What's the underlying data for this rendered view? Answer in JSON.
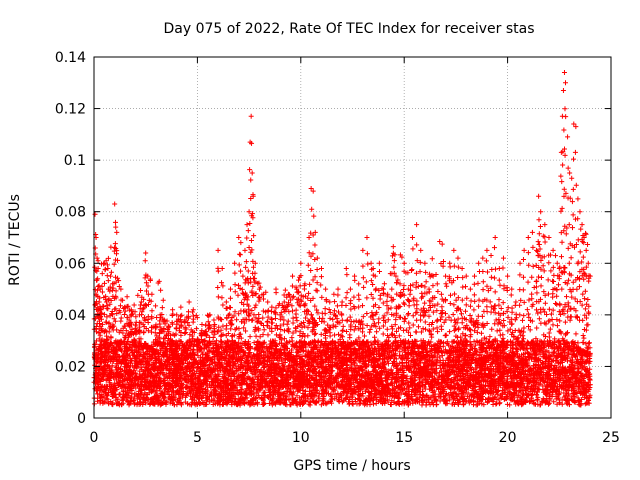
{
  "chart_data": {
    "type": "scatter",
    "title": "Day 075 of 2022, Rate Of TEC Index for receiver stas",
    "xlabel": "GPS time / hours",
    "ylabel": "ROTI / TECUs",
    "xlim": [
      0,
      25
    ],
    "ylim": [
      0,
      0.14
    ],
    "xticks": [
      0,
      5,
      10,
      15,
      20,
      25
    ],
    "xtick_labels": [
      "0",
      "5",
      "10",
      "15",
      "20",
      "25"
    ],
    "yticks": [
      0,
      0.02,
      0.04,
      0.06,
      0.08,
      0.1,
      0.12,
      0.14
    ],
    "ytick_labels": [
      "0",
      "0.02",
      "0.04",
      "0.06",
      "0.08",
      "0.1",
      "0.12",
      "0.14"
    ],
    "grid": true,
    "marker": "+",
    "color": "#ff0000",
    "series": [
      {
        "name": "ROTI",
        "x": [
          0.05,
          0.1,
          0.15,
          0.2,
          0.25,
          0.3,
          0.35,
          0.4,
          0.5,
          0.6,
          0.7,
          0.8,
          0.9,
          1.0,
          1.05,
          1.1,
          1.3,
          1.5,
          1.6,
          1.7,
          1.8,
          2.0,
          2.2,
          2.4,
          2.5,
          2.6,
          2.8,
          3.0,
          3.2,
          3.4,
          3.6,
          3.8,
          4.0,
          4.2,
          4.4,
          4.6,
          4.8,
          5.0,
          5.2,
          5.4,
          5.6,
          5.8,
          6.0,
          6.2,
          6.4,
          6.6,
          6.8,
          7.0,
          7.1,
          7.2,
          7.3,
          7.4,
          7.5,
          7.55,
          7.6,
          7.65,
          7.7,
          7.8,
          8.0,
          8.2,
          8.4,
          8.6,
          8.8,
          9.0,
          9.2,
          9.4,
          9.6,
          9.8,
          10.0,
          10.2,
          10.4,
          10.5,
          10.6,
          10.7,
          10.8,
          11.0,
          11.2,
          11.4,
          11.6,
          11.8,
          12.0,
          12.2,
          12.4,
          12.6,
          12.8,
          13.0,
          13.2,
          13.4,
          13.5,
          13.6,
          13.8,
          14.0,
          14.2,
          14.4,
          14.6,
          14.8,
          15.0,
          15.2,
          15.4,
          15.6,
          15.8,
          16.0,
          16.2,
          16.4,
          16.6,
          16.8,
          17.0,
          17.2,
          17.4,
          17.6,
          17.8,
          18.0,
          18.2,
          18.4,
          18.6,
          18.8,
          19.0,
          19.2,
          19.4,
          19.6,
          19.8,
          20.0,
          20.2,
          20.4,
          20.6,
          20.8,
          21.0,
          21.2,
          21.4,
          21.5,
          21.6,
          21.8,
          22.0,
          22.2,
          22.4,
          22.5,
          22.6,
          22.65,
          22.7,
          22.75,
          22.8,
          22.9,
          23.0,
          23.1,
          23.2,
          23.3,
          23.4,
          23.5,
          23.6,
          23.7,
          23.8,
          23.9
        ],
        "y": [
          0.079,
          0.07,
          0.062,
          0.058,
          0.045,
          0.05,
          0.042,
          0.056,
          0.06,
          0.045,
          0.05,
          0.055,
          0.052,
          0.083,
          0.074,
          0.072,
          0.05,
          0.043,
          0.047,
          0.038,
          0.042,
          0.036,
          0.04,
          0.046,
          0.064,
          0.055,
          0.048,
          0.035,
          0.04,
          0.038,
          0.035,
          0.042,
          0.04,
          0.043,
          0.038,
          0.045,
          0.042,
          0.03,
          0.033,
          0.036,
          0.04,
          0.038,
          0.065,
          0.058,
          0.045,
          0.05,
          0.06,
          0.07,
          0.068,
          0.055,
          0.065,
          0.075,
          0.08,
          0.107,
          0.117,
          0.095,
          0.086,
          0.06,
          0.05,
          0.048,
          0.045,
          0.043,
          0.05,
          0.04,
          0.045,
          0.048,
          0.055,
          0.05,
          0.06,
          0.052,
          0.07,
          0.089,
          0.088,
          0.072,
          0.062,
          0.058,
          0.05,
          0.045,
          0.048,
          0.05,
          0.045,
          0.058,
          0.05,
          0.055,
          0.052,
          0.065,
          0.07,
          0.06,
          0.058,
          0.055,
          0.06,
          0.05,
          0.048,
          0.05,
          0.055,
          0.052,
          0.06,
          0.05,
          0.07,
          0.075,
          0.065,
          0.06,
          0.05,
          0.055,
          0.052,
          0.048,
          0.055,
          0.06,
          0.065,
          0.062,
          0.058,
          0.055,
          0.05,
          0.055,
          0.06,
          0.062,
          0.065,
          0.063,
          0.07,
          0.058,
          0.062,
          0.055,
          0.05,
          0.045,
          0.06,
          0.065,
          0.07,
          0.072,
          0.065,
          0.086,
          0.08,
          0.075,
          0.07,
          0.065,
          0.06,
          0.058,
          0.103,
          0.117,
          0.127,
          0.134,
          0.13,
          0.109,
          0.095,
          0.093,
          0.114,
          0.113,
          0.085,
          0.08,
          0.075,
          0.07,
          0.065,
          0.06
        ]
      }
    ],
    "baseline_band": [
      0.005,
      0.03
    ],
    "estimated_point_count": 8000
  }
}
